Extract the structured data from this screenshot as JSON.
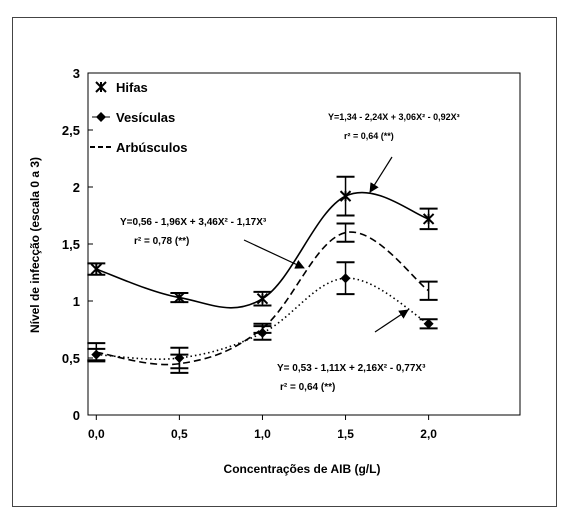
{
  "chart_data": {
    "type": "line",
    "xlabel": "Concentrações de AIB (g/L)",
    "ylabel": "Nível de infecção (escala 0 a 3)",
    "xlim": [
      -0.05,
      2.55
    ],
    "ylim": [
      0,
      3
    ],
    "x_ticks": [
      0,
      0.5,
      1,
      1.5,
      2
    ],
    "x_tick_labels": [
      "0,0",
      "0,5",
      "1,0",
      "1,5",
      "2,0"
    ],
    "y_ticks": [
      0,
      0.5,
      1,
      1.5,
      2,
      2.5,
      3
    ],
    "y_tick_labels": [
      "0",
      "0,5",
      "1",
      "1,5",
      "2",
      "2,5",
      "3"
    ],
    "grid": false,
    "legend_position": "top-left",
    "series": [
      {
        "name": "Hifas",
        "marker": "x",
        "line_style": "solid",
        "x": [
          0,
          0.5,
          1,
          1.5,
          2
        ],
        "y": [
          1.28,
          1.03,
          1.02,
          1.92,
          1.72
        ],
        "err": [
          0.05,
          0.04,
          0.06,
          0.17,
          0.09
        ],
        "fit": [
          1.34,
          -2.24,
          3.06,
          -0.92
        ]
      },
      {
        "name": "Vesículas",
        "marker": "diamond",
        "line_style": "dotted",
        "x": [
          0,
          0.5,
          1,
          1.5,
          2
        ],
        "y": [
          0.53,
          0.5,
          0.72,
          1.2,
          0.8
        ],
        "err": [
          0.05,
          0.09,
          0.06,
          0.14,
          0.04
        ],
        "fit": [
          0.53,
          -1.11,
          2.16,
          -0.77
        ]
      },
      {
        "name": "Arbúsculos",
        "marker": "none",
        "line_style": "dashed",
        "x": [
          0,
          0.5,
          1,
          1.5,
          2
        ],
        "y": [
          0.55,
          0.45,
          0.76,
          1.6,
          1.09
        ],
        "err": [
          0.08,
          0.08,
          0.04,
          0.08,
          0.08
        ],
        "fit": [
          0.56,
          -1.96,
          3.46,
          -1.17
        ]
      }
    ],
    "annotations": [
      {
        "equation": "Y=1,34 - 2,24X + 3,06X² - 0,92X³",
        "r2": "r² = 0,64 (**)",
        "series": "Hifas"
      },
      {
        "equation": "Y=0,56 - 1,96X + 3,46X² - 1,17X³",
        "r2": "r² = 0,78 (**)",
        "series": "Arbúsculos"
      },
      {
        "equation": "Y= 0,53 - 1,11X + 2,16X² - 0,77X³",
        "r2": "r² = 0,64 (**)",
        "series": "Vesículas"
      }
    ]
  }
}
